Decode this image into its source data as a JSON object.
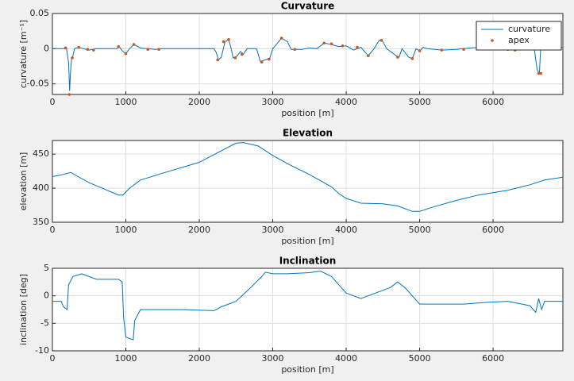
{
  "chart_data": [
    {
      "type": "line",
      "title": "Curvature",
      "xlabel": "position [m]",
      "ylabel": "curvature [m⁻¹]",
      "xlim": [
        0,
        6950
      ],
      "ylim": [
        -0.065,
        0.05
      ],
      "xticks": [
        0,
        1000,
        2000,
        3000,
        4000,
        5000,
        6000
      ],
      "yticks": [
        0.05,
        0,
        -0.05
      ],
      "grid": true,
      "legend": "northeast",
      "series": [
        {
          "name": "curvature",
          "color": "#0072bd",
          "mode": "line",
          "x": [
            0,
            150,
            190,
            220,
            235,
            245,
            260,
            280,
            300,
            360,
            420,
            500,
            600,
            880,
            910,
            950,
            1000,
            1050,
            1110,
            1200,
            1400,
            1500,
            2200,
            2230,
            2260,
            2300,
            2350,
            2400,
            2430,
            2460,
            2520,
            2560,
            2600,
            2650,
            2780,
            2830,
            2900,
            2960,
            3000,
            3040,
            3120,
            3200,
            3250,
            3400,
            3500,
            3600,
            3700,
            3800,
            3900,
            4000,
            4100,
            4200,
            4300,
            4380,
            4450,
            4500,
            4550,
            4680,
            4720,
            4760,
            4850,
            4900,
            4950,
            5000,
            5050,
            5100,
            5300,
            5500,
            5600,
            5800,
            6000,
            6100,
            6300,
            6400,
            6560,
            6600,
            6630,
            6650,
            6700,
            6950
          ],
          "values": [
            0,
            0,
            0.002,
            -0.02,
            -0.06,
            -0.035,
            -0.015,
            -0.01,
            0,
            0.002,
            0,
            -0.002,
            0,
            0,
            0.003,
            -0.003,
            -0.007,
            0,
            0.006,
            0.001,
            -0.001,
            0,
            0,
            -0.005,
            -0.016,
            -0.012,
            0.01,
            0.013,
            0.002,
            -0.013,
            -0.01,
            -0.004,
            -0.008,
            0,
            0,
            -0.018,
            -0.016,
            -0.013,
            0,
            0.005,
            0.015,
            0.01,
            -0.001,
            -0.001,
            0.001,
            0,
            0.008,
            0.006,
            0.003,
            0.004,
            -0.002,
            0.002,
            -0.01,
            0,
            0.012,
            0.01,
            0,
            -0.01,
            -0.012,
            0,
            -0.012,
            -0.014,
            0,
            -0.003,
            0.002,
            0,
            -0.002,
            -0.001,
            0,
            0.002,
            0.002,
            0,
            -0.002,
            0,
            0,
            -0.03,
            -0.035,
            0.005,
            0.003,
            0.002
          ]
        },
        {
          "name": "apex",
          "color": "#d95319",
          "mode": "markers",
          "x": [
            180,
            230,
            270,
            360,
            480,
            560,
            900,
            1000,
            1110,
            1300,
            1450,
            2250,
            2330,
            2400,
            2490,
            2580,
            2850,
            2950,
            3120,
            3300,
            3700,
            3800,
            3950,
            4150,
            4300,
            4480,
            4700,
            4900,
            5000,
            5300,
            5600,
            5800,
            6000,
            6200,
            6300,
            6620,
            6650
          ],
          "values": [
            0.001,
            -0.065,
            -0.013,
            0.002,
            -0.001,
            -0.002,
            0.003,
            -0.007,
            0.006,
            -0.001,
            -0.001,
            -0.016,
            0.01,
            0.013,
            -0.013,
            -0.008,
            -0.019,
            -0.015,
            0.015,
            -0.001,
            0.008,
            0.007,
            0.004,
            0.002,
            -0.01,
            0.012,
            -0.012,
            -0.014,
            -0.003,
            -0.002,
            -0.001,
            0.002,
            0.002,
            -0.001,
            -0.002,
            -0.035,
            -0.035
          ]
        }
      ]
    },
    {
      "type": "line",
      "title": "Elevation",
      "xlabel": "position [m]",
      "ylabel": "elevation [m]",
      "xlim": [
        0,
        6950
      ],
      "ylim": [
        350,
        470
      ],
      "xticks": [
        0,
        1000,
        2000,
        3000,
        4000,
        5000,
        6000
      ],
      "yticks": [
        450,
        400,
        350
      ],
      "grid": true,
      "series": [
        {
          "color": "#0072bd",
          "mode": "line",
          "x": [
            0,
            100,
            250,
            350,
            500,
            700,
            900,
            960,
            1050,
            1200,
            1500,
            2000,
            2300,
            2500,
            2600,
            2800,
            3000,
            3200,
            3500,
            3800,
            3900,
            4000,
            4200,
            4500,
            4700,
            4900,
            5000,
            5200,
            5500,
            5800,
            6200,
            6500,
            6700,
            6950
          ],
          "values": [
            417,
            419,
            423,
            417,
            408,
            399,
            390,
            390,
            400,
            412,
            422,
            438,
            455,
            466,
            467,
            462,
            448,
            436,
            420,
            402,
            392,
            385,
            378,
            377,
            374,
            366,
            366,
            373,
            382,
            390,
            397,
            405,
            412,
            416
          ]
        }
      ]
    },
    {
      "type": "line",
      "title": "Inclination",
      "xlabel": "position [m]",
      "ylabel": "inclination [deg]",
      "xlim": [
        0,
        6950
      ],
      "ylim": [
        -10,
        5
      ],
      "xticks": [
        0,
        1000,
        2000,
        3000,
        4000,
        5000,
        6000
      ],
      "yticks": [
        5,
        0,
        -5,
        -10
      ],
      "grid": true,
      "series": [
        {
          "color": "#0072bd",
          "mode": "line",
          "x": [
            0,
            120,
            150,
            200,
            220,
            280,
            400,
            500,
            600,
            900,
            950,
            970,
            1000,
            1100,
            1120,
            1200,
            1500,
            1800,
            2000,
            2200,
            2300,
            2500,
            2700,
            2850,
            2900,
            3000,
            3200,
            3500,
            3650,
            3800,
            3900,
            4000,
            4200,
            4400,
            4600,
            4700,
            4800,
            4900,
            5000,
            5300,
            5600,
            5900,
            6200,
            6500,
            6580,
            6620,
            6660,
            6700,
            6950
          ],
          "values": [
            -1,
            -1,
            -2,
            -2.5,
            2,
            3.5,
            4,
            3.5,
            3,
            3,
            2.5,
            -4,
            -7.5,
            -8,
            -4.5,
            -2.5,
            -2.5,
            -2.5,
            -2.6,
            -2.7,
            -2,
            -1,
            1.5,
            3.5,
            4.3,
            4,
            4,
            4.2,
            4.5,
            3.5,
            2,
            0.5,
            -0.5,
            0.5,
            1.5,
            2.5,
            1.5,
            0,
            -1.5,
            -1.5,
            -1.5,
            -1.2,
            -1,
            -1.8,
            -3,
            -0.5,
            -2.5,
            -1,
            -1
          ]
        }
      ]
    }
  ]
}
